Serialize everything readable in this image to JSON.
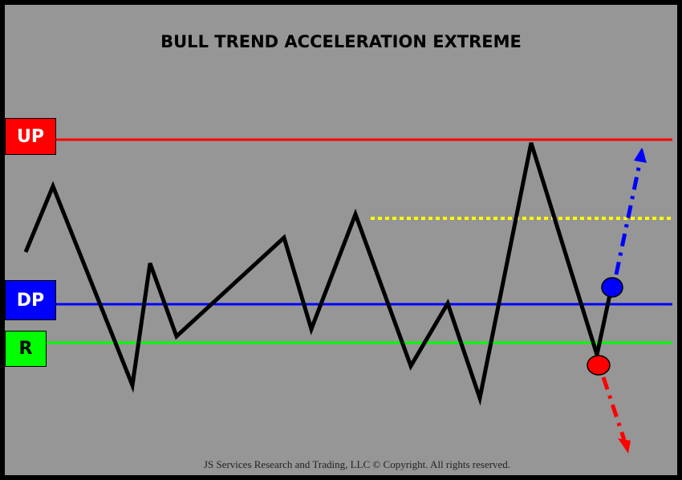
{
  "title": "BULL TREND ACCELERATION EXTREME",
  "labels": {
    "up": "UP",
    "dp": "DP",
    "r": "R"
  },
  "footer": "JS Services Research  and Trading, LLC © Copyright. All rights reserved.",
  "colors": {
    "background": "#969696",
    "border": "#000000",
    "up_line": "#ff0000",
    "dp_line": "#0000ff",
    "r_line": "#00ff00",
    "dotted_line": "#ffff00",
    "price_line": "#000000",
    "blue_marker": "#0000ff",
    "red_marker": "#ff0000"
  }
}
